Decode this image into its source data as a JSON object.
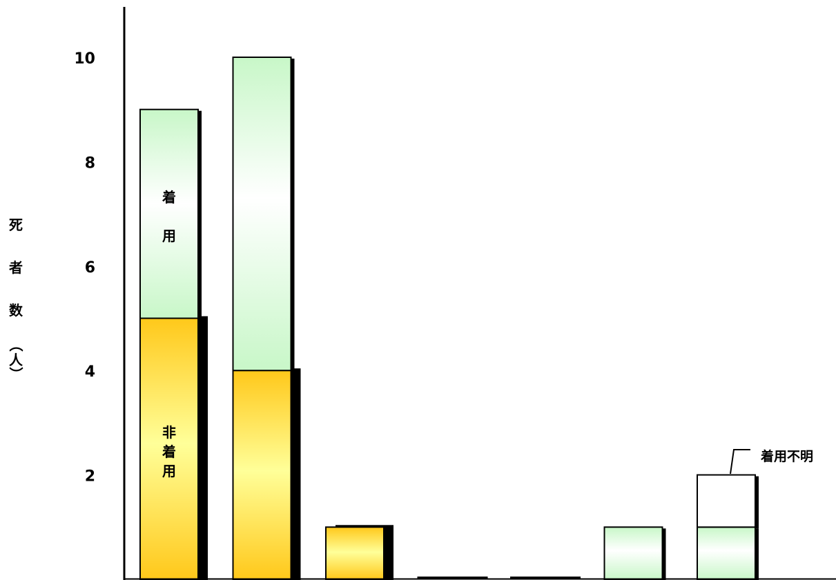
{
  "chart_data": {
    "type": "bar",
    "stacked": true,
    "ylabel_chars": [
      "死",
      "者",
      "数",
      "（人）"
    ],
    "ylabel_paren_open": "（",
    "ylabel_unit": "人",
    "ylabel_paren_close": "）",
    "yticks": [
      2,
      4,
      6,
      8,
      10
    ],
    "ylim": [
      0,
      11
    ],
    "categories": [
      "",
      "",
      "",
      "",
      "",
      "",
      ""
    ],
    "series": [
      {
        "values": [
          5,
          4,
          1,
          0,
          0,
          0,
          0
        ],
        "color": "#ffd11a"
      },
      {
        "values": [
          4,
          6,
          0,
          0,
          0,
          1,
          1
        ],
        "color": "#ccffcc"
      },
      {
        "values": [
          0,
          0,
          0,
          0,
          0,
          0,
          1
        ],
        "color": "#ffffff"
      }
    ],
    "annotations": {
      "wearing_chars": [
        "着",
        "用"
      ],
      "non_wearing_chars": [
        "非",
        "着",
        "用"
      ],
      "unknown": "着用不明"
    },
    "grid": false,
    "legend": "none"
  },
  "colors": {
    "non_wearing_dark": "#ffc81a",
    "non_wearing_light": "#ffff99",
    "wearing_light": "#ffffff",
    "wearing_green": "#c8f7c8",
    "shadow": "#000000"
  }
}
